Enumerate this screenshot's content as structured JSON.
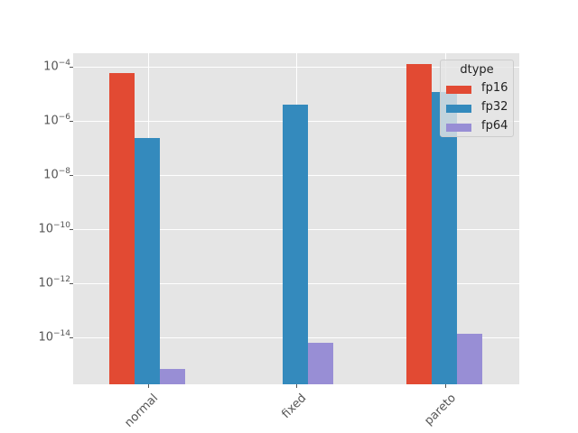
{
  "chart_data": {
    "type": "bar",
    "title": "",
    "xlabel": "",
    "ylabel": "",
    "yscale": "log",
    "ylim": [
      1.9e-16,
      0.00032
    ],
    "categories": [
      "normal",
      "fixed",
      "pareto"
    ],
    "series": [
      {
        "name": "fp16",
        "color": "#E24A33",
        "values": [
          6e-05,
          null,
          0.000126
        ]
      },
      {
        "name": "fp32",
        "color": "#348ABD",
        "values": [
          2.4e-07,
          3.9e-06,
          1.15e-05
        ]
      },
      {
        "name": "fp64",
        "color": "#988ED5",
        "values": [
          6.8e-16,
          6.7e-15,
          1.35e-14
        ]
      }
    ],
    "yticks": [
      {
        "exp": "-4",
        "label": "10^-4"
      },
      {
        "exp": "-6",
        "label": "10^-6"
      },
      {
        "exp": "-8",
        "label": "10^-8"
      },
      {
        "exp": "-10",
        "label": "10^-10"
      },
      {
        "exp": "-12",
        "label": "10^-12"
      },
      {
        "exp": "-14",
        "label": "10^-14"
      }
    ],
    "legend": {
      "title": "dtype",
      "position": "upper right",
      "entries": [
        "fp16",
        "fp32",
        "fp64"
      ]
    },
    "grid": true,
    "style": "ggplot"
  }
}
